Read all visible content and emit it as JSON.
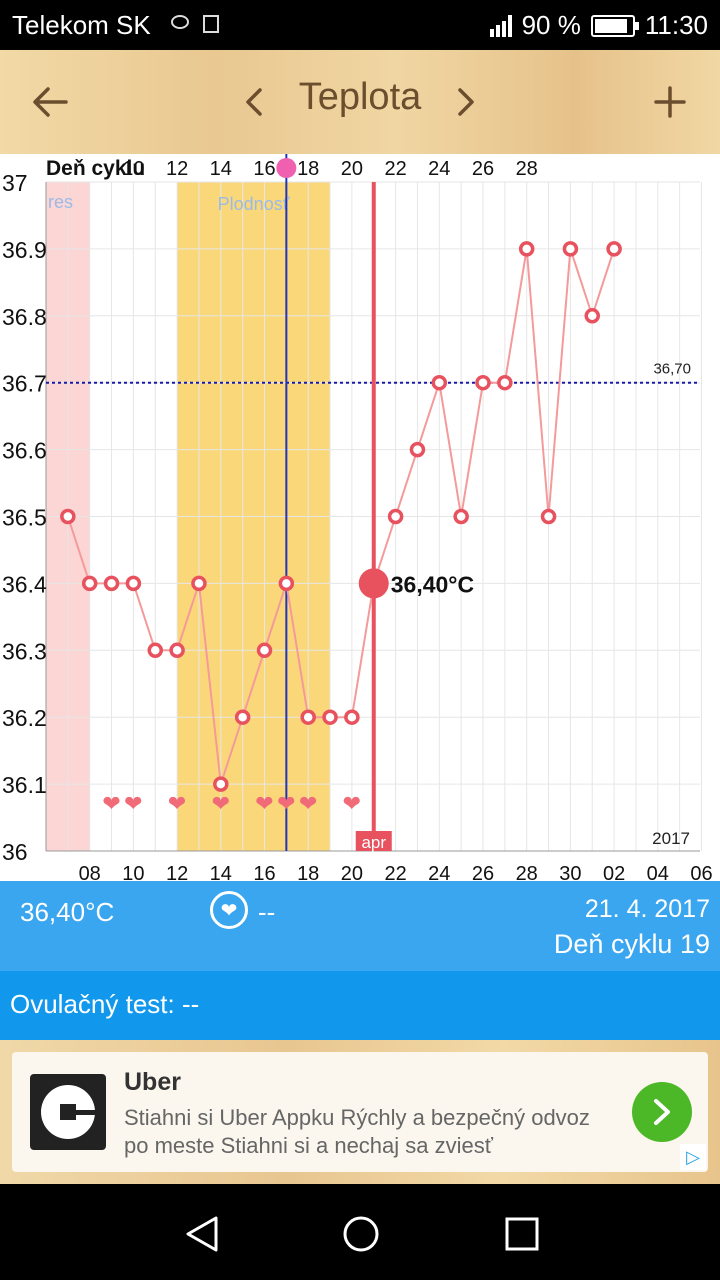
{
  "status_bar": {
    "carrier": "Telekom SK",
    "battery": "90 %",
    "battery_level": 0.9,
    "time": "11:30",
    "icons": [
      "message-icon",
      "storage-icon",
      "signal-h-icon",
      "battery-icon"
    ]
  },
  "toolbar": {
    "back_icon": "arrow-back-icon",
    "prev_icon": "chevron-left-icon",
    "title": "Teplota",
    "next_icon": "chevron-right-icon",
    "add_icon": "plus-icon"
  },
  "chart_data": {
    "type": "line",
    "top_axis_label": "Deň cyklu",
    "top_ticks": [
      "10",
      "12",
      "14",
      "16",
      "18",
      "20",
      "22",
      "24",
      "26",
      "28"
    ],
    "bottom_ticks": [
      "08",
      "10",
      "12",
      "14",
      "16",
      "18",
      "20",
      "22",
      "24",
      "26",
      "28",
      "30",
      "02",
      "04",
      "06"
    ],
    "y_ticks": [
      "36",
      "36.1",
      "36.2",
      "36.3",
      "36.4",
      "36.5",
      "36.6",
      "36.7",
      "36.8",
      "36.9",
      "37"
    ],
    "ylim": [
      36,
      37
    ],
    "x": [
      7,
      8,
      9,
      10,
      11,
      12,
      13,
      14,
      15,
      16,
      17,
      18,
      19,
      20,
      21,
      22,
      23,
      24,
      25,
      26,
      27,
      28,
      29,
      30,
      31,
      32
    ],
    "values": [
      36.5,
      36.4,
      36.4,
      36.4,
      36.3,
      36.3,
      36.4,
      36.1,
      36.2,
      36.3,
      36.4,
      36.2,
      36.2,
      36.2,
      36.4,
      36.5,
      36.6,
      36.7,
      36.5,
      36.7,
      36.7,
      36.9,
      36.5,
      36.9,
      36.8,
      36.9
    ],
    "heart_days": [
      9,
      10,
      12,
      14,
      16,
      17,
      18,
      20
    ],
    "period_band": {
      "from": 6,
      "to": 8,
      "label": "res",
      "color": "#fcd5d5"
    },
    "fertile_band": {
      "from": 12,
      "to": 19,
      "label": "Plodnosť",
      "color": "#fad87a"
    },
    "ovulation_day": 17,
    "current_day": 21,
    "current_value": 36.4,
    "current_label": "36,40°C",
    "month_label": "apr",
    "coverline": 36.7,
    "coverline_label": "36,70",
    "year_label": "2017",
    "line_color": "#f59a9a",
    "marker_color": "#e8515e",
    "grid": true
  },
  "info": {
    "temp": "36,40°C",
    "intercourse": "--",
    "date": "21. 4. 2017",
    "cycle_day": "Deň cyklu 19"
  },
  "ovulation_test": {
    "label": "Ovulačný test:",
    "value": "--"
  },
  "ad": {
    "name": "Uber",
    "description": "Stiahni si Uber Appku Rýchly a bezpečný odvoz po meste Stiahni si a nechaj sa zviesť",
    "cta_icon": "chevron-right-icon",
    "choice_icon": "adchoices-icon"
  },
  "nav": {
    "back": "back-icon",
    "home": "home-icon",
    "recent": "recent-apps-icon"
  }
}
